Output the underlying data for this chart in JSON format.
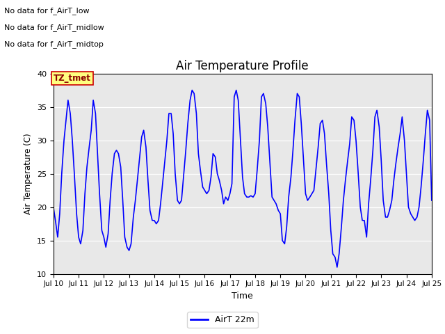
{
  "title": "Air Temperature Profile",
  "xlabel": "Time",
  "ylabel": "Air Temperature (C)",
  "ylim": [
    10,
    40
  ],
  "xlim": [
    0,
    15
  ],
  "bg_color": "#e8e8e8",
  "line_color": "blue",
  "text_lines": [
    "No data for f_AirT_low",
    "No data for f_AirT_midlow",
    "No data for f_AirT_midtop"
  ],
  "legend_label": "AirT 22m",
  "tz_label": "TZ_tmet",
  "x_tick_labels": [
    "Jul 10",
    "Jul 11",
    "Jul 12",
    "Jul 13",
    "Jul 14",
    "Jul 15",
    "Jul 16",
    "Jul 17",
    "Jul 18",
    "Jul 19",
    "Jul 20",
    "Jul 21",
    "Jul 22",
    "Jul 23",
    "Jul 24",
    "Jul 25"
  ],
  "x_ticks": [
    0,
    1,
    2,
    3,
    4,
    5,
    6,
    7,
    8,
    9,
    10,
    11,
    12,
    13,
    14,
    15
  ],
  "y_ticks": [
    10,
    15,
    20,
    25,
    30,
    35,
    40
  ],
  "data_x": [
    0.0,
    0.08,
    0.17,
    0.25,
    0.33,
    0.42,
    0.5,
    0.58,
    0.67,
    0.75,
    0.83,
    0.92,
    1.0,
    1.08,
    1.17,
    1.25,
    1.33,
    1.42,
    1.5,
    1.58,
    1.67,
    1.75,
    1.83,
    1.92,
    2.0,
    2.08,
    2.17,
    2.25,
    2.33,
    2.42,
    2.5,
    2.58,
    2.67,
    2.75,
    2.83,
    2.92,
    3.0,
    3.08,
    3.17,
    3.25,
    3.33,
    3.42,
    3.5,
    3.58,
    3.67,
    3.75,
    3.83,
    3.92,
    4.0,
    4.08,
    4.17,
    4.25,
    4.33,
    4.42,
    4.5,
    4.58,
    4.67,
    4.75,
    4.83,
    4.92,
    5.0,
    5.08,
    5.17,
    5.25,
    5.33,
    5.42,
    5.5,
    5.58,
    5.67,
    5.75,
    5.83,
    5.92,
    6.0,
    6.08,
    6.17,
    6.25,
    6.33,
    6.42,
    6.5,
    6.58,
    6.67,
    6.75,
    6.83,
    6.92,
    7.0,
    7.08,
    7.17,
    7.25,
    7.33,
    7.42,
    7.5,
    7.58,
    7.67,
    7.75,
    7.83,
    7.92,
    8.0,
    8.08,
    8.17,
    8.25,
    8.33,
    8.42,
    8.5,
    8.58,
    8.67,
    8.75,
    8.83,
    8.92,
    9.0,
    9.08,
    9.17,
    9.25,
    9.33,
    9.42,
    9.5,
    9.58,
    9.67,
    9.75,
    9.83,
    9.92,
    10.0,
    10.08,
    10.17,
    10.25,
    10.33,
    10.42,
    10.5,
    10.58,
    10.67,
    10.75,
    10.83,
    10.92,
    11.0,
    11.08,
    11.17,
    11.25,
    11.33,
    11.42,
    11.5,
    11.58,
    11.67,
    11.75,
    11.83,
    11.92,
    12.0,
    12.08,
    12.17,
    12.25,
    12.33,
    12.42,
    12.5,
    12.58,
    12.67,
    12.75,
    12.83,
    12.92,
    13.0,
    13.08,
    13.17,
    13.25,
    13.33,
    13.42,
    13.5,
    13.58,
    13.67,
    13.75,
    13.83,
    13.92,
    14.0,
    14.08,
    14.17,
    14.25,
    14.33,
    14.42,
    14.5,
    14.58,
    14.67,
    14.75,
    14.83,
    14.92,
    15.0
  ],
  "data_y": [
    20.0,
    18.0,
    15.5,
    19.0,
    25.0,
    30.0,
    33.0,
    36.0,
    34.0,
    30.0,
    25.0,
    19.0,
    15.5,
    14.5,
    16.5,
    22.0,
    26.0,
    29.0,
    31.5,
    36.0,
    34.0,
    28.0,
    22.0,
    16.5,
    15.5,
    14.0,
    16.0,
    21.0,
    25.0,
    28.0,
    28.5,
    28.0,
    26.0,
    21.0,
    15.5,
    14.0,
    13.5,
    14.5,
    18.5,
    21.0,
    24.0,
    27.5,
    30.5,
    31.5,
    29.0,
    24.0,
    19.5,
    18.0,
    18.0,
    17.5,
    18.0,
    20.5,
    23.5,
    27.0,
    30.0,
    34.0,
    34.0,
    31.0,
    25.0,
    21.0,
    20.5,
    21.0,
    25.0,
    28.5,
    32.5,
    36.0,
    37.5,
    37.0,
    34.0,
    28.0,
    25.5,
    23.0,
    22.5,
    22.0,
    22.5,
    24.5,
    28.0,
    27.5,
    25.0,
    24.0,
    22.5,
    20.5,
    21.5,
    21.0,
    22.0,
    23.5,
    36.5,
    37.5,
    36.0,
    30.0,
    24.5,
    22.0,
    21.5,
    21.5,
    21.7,
    21.5,
    22.0,
    25.5,
    30.0,
    36.5,
    37.0,
    35.5,
    32.0,
    27.0,
    21.5,
    21.0,
    20.5,
    19.5,
    19.0,
    15.0,
    14.5,
    17.0,
    21.5,
    24.5,
    28.5,
    33.0,
    37.0,
    36.5,
    32.5,
    27.0,
    22.0,
    21.0,
    21.5,
    22.0,
    22.5,
    26.0,
    29.0,
    32.5,
    33.0,
    31.0,
    26.5,
    22.0,
    16.5,
    13.0,
    12.5,
    11.0,
    13.0,
    17.0,
    21.0,
    24.0,
    27.0,
    29.5,
    33.5,
    33.0,
    30.0,
    25.5,
    20.0,
    18.0,
    18.0,
    15.5,
    20.5,
    24.0,
    28.5,
    33.5,
    34.5,
    32.0,
    27.0,
    21.0,
    18.5,
    18.5,
    19.5,
    21.0,
    24.0,
    26.5,
    29.0,
    31.0,
    33.5,
    30.0,
    25.0,
    20.0,
    19.0,
    18.5,
    18.0,
    18.5,
    20.0,
    23.0,
    27.0,
    31.0,
    34.5,
    33.0,
    21.0
  ]
}
